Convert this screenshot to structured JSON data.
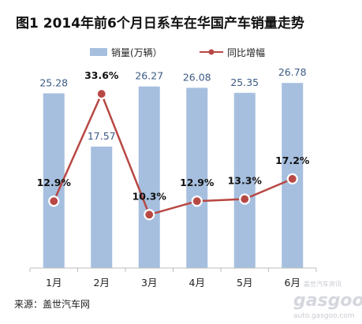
{
  "chart_data": {
    "type": "bar",
    "title": "图1  2014年前6个月日系车在华国产车销量走势",
    "categories": [
      "1月",
      "2月",
      "3月",
      "4月",
      "5月",
      "6月"
    ],
    "series": [
      {
        "name": "销量(万辆）",
        "type": "bar",
        "values": [
          25.28,
          17.57,
          26.27,
          26.08,
          25.35,
          26.78
        ],
        "labels": [
          "25.28",
          "17.57",
          "26.27",
          "26.08",
          "25.35",
          "26.78"
        ],
        "color": "#a6bfdf"
      },
      {
        "name": "同比增幅",
        "type": "line",
        "values": [
          12.9,
          33.6,
          10.3,
          12.9,
          13.3,
          17.2
        ],
        "labels": [
          "12.9%",
          "33.6%",
          "10.3%",
          "12.9%",
          "13.3%",
          "17.2%"
        ],
        "color": "#b84844",
        "marker_fill": "#b84844",
        "marker_stroke": "#ffffff"
      }
    ],
    "bar_ylim": [
      0,
      30
    ],
    "line_ylim": [
      0,
      40
    ],
    "grid": false,
    "legend_position": "top"
  },
  "footer": {
    "source": "来源：盖世汽车网"
  },
  "watermark": {
    "brand": "gasgoo",
    "cn": "盖世汽车资讯",
    "url": "auto.gasgoo.com"
  }
}
